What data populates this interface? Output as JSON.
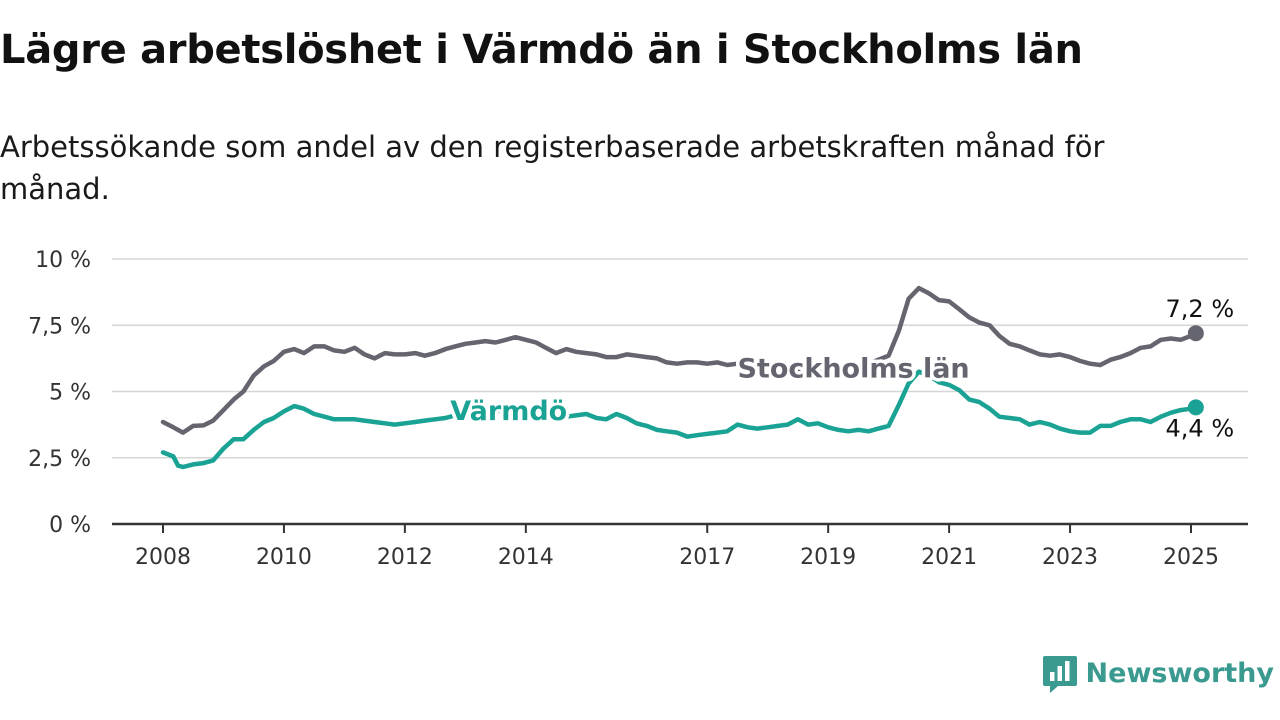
{
  "title": "Lägre arbetslöshet i Värmdö än i Stockholms län",
  "subtitle": "Arbetssökande som andel av den registerbaserade arbetskraften månad för månad.",
  "brand": {
    "name": "Newsworthy",
    "logo_icon": "bar-chart-speech-bubble-icon",
    "color": "#3a9a8f"
  },
  "chart_data": {
    "type": "line",
    "x_unit": "year",
    "xlim": [
      2008,
      2025
    ],
    "ylim": [
      0,
      10
    ],
    "y_ticks": [
      0,
      2.5,
      5,
      7.5,
      10
    ],
    "y_tick_labels": [
      "0 %",
      "2,5 %",
      "5 %",
      "7,5 %",
      "10 %"
    ],
    "x_ticks": [
      2008,
      2010,
      2012,
      2014,
      2017,
      2019,
      2021,
      2023,
      2025
    ],
    "x_tick_labels": [
      "2008",
      "2010",
      "2012",
      "2014",
      "2017",
      "2019",
      "2021",
      "2023",
      "2025"
    ],
    "grid": "horizontal",
    "series": [
      {
        "name": "Stockholms län",
        "color": "#656570",
        "end_label": "7,2 %",
        "points": [
          [
            2008.0,
            3.85
          ],
          [
            2008.17,
            3.65
          ],
          [
            2008.33,
            3.45
          ],
          [
            2008.5,
            3.7
          ],
          [
            2008.67,
            3.72
          ],
          [
            2008.83,
            3.9
          ],
          [
            2009.0,
            4.3
          ],
          [
            2009.17,
            4.7
          ],
          [
            2009.33,
            5.0
          ],
          [
            2009.5,
            5.6
          ],
          [
            2009.67,
            5.95
          ],
          [
            2009.83,
            6.15
          ],
          [
            2010.0,
            6.5
          ],
          [
            2010.17,
            6.6
          ],
          [
            2010.33,
            6.45
          ],
          [
            2010.5,
            6.7
          ],
          [
            2010.67,
            6.7
          ],
          [
            2010.83,
            6.55
          ],
          [
            2011.0,
            6.5
          ],
          [
            2011.17,
            6.65
          ],
          [
            2011.33,
            6.4
          ],
          [
            2011.5,
            6.25
          ],
          [
            2011.67,
            6.45
          ],
          [
            2011.83,
            6.4
          ],
          [
            2012.0,
            6.4
          ],
          [
            2012.17,
            6.45
          ],
          [
            2012.33,
            6.35
          ],
          [
            2012.5,
            6.45
          ],
          [
            2012.67,
            6.6
          ],
          [
            2012.83,
            6.7
          ],
          [
            2013.0,
            6.8
          ],
          [
            2013.17,
            6.85
          ],
          [
            2013.33,
            6.9
          ],
          [
            2013.5,
            6.85
          ],
          [
            2013.67,
            6.95
          ],
          [
            2013.83,
            7.05
          ],
          [
            2014.0,
            6.95
          ],
          [
            2014.17,
            6.85
          ],
          [
            2014.33,
            6.65
          ],
          [
            2014.5,
            6.45
          ],
          [
            2014.67,
            6.6
          ],
          [
            2014.83,
            6.5
          ],
          [
            2015.0,
            6.45
          ],
          [
            2015.17,
            6.4
          ],
          [
            2015.33,
            6.3
          ],
          [
            2015.5,
            6.3
          ],
          [
            2015.67,
            6.4
          ],
          [
            2015.83,
            6.35
          ],
          [
            2016.0,
            6.3
          ],
          [
            2016.17,
            6.25
          ],
          [
            2016.33,
            6.1
          ],
          [
            2016.5,
            6.05
          ],
          [
            2016.67,
            6.1
          ],
          [
            2016.83,
            6.1
          ],
          [
            2017.0,
            6.05
          ],
          [
            2017.17,
            6.1
          ],
          [
            2017.33,
            6.0
          ],
          [
            2017.5,
            6.05
          ],
          [
            2017.67,
            5.95
          ],
          [
            2017.83,
            5.85
          ],
          [
            2018.0,
            5.8
          ],
          [
            2018.17,
            5.85
          ],
          [
            2018.33,
            5.75
          ],
          [
            2018.5,
            5.75
          ],
          [
            2018.67,
            5.8
          ],
          [
            2018.83,
            5.75
          ],
          [
            2019.0,
            5.7
          ],
          [
            2019.17,
            5.75
          ],
          [
            2019.33,
            5.8
          ],
          [
            2019.5,
            5.95
          ],
          [
            2019.67,
            6.05
          ],
          [
            2019.83,
            6.2
          ],
          [
            2020.0,
            6.35
          ],
          [
            2020.17,
            7.3
          ],
          [
            2020.33,
            8.5
          ],
          [
            2020.5,
            8.9
          ],
          [
            2020.67,
            8.7
          ],
          [
            2020.83,
            8.45
          ],
          [
            2021.0,
            8.4
          ],
          [
            2021.17,
            8.1
          ],
          [
            2021.33,
            7.8
          ],
          [
            2021.5,
            7.6
          ],
          [
            2021.67,
            7.5
          ],
          [
            2021.83,
            7.1
          ],
          [
            2022.0,
            6.8
          ],
          [
            2022.17,
            6.7
          ],
          [
            2022.33,
            6.55
          ],
          [
            2022.5,
            6.4
          ],
          [
            2022.67,
            6.35
          ],
          [
            2022.83,
            6.4
          ],
          [
            2023.0,
            6.3
          ],
          [
            2023.17,
            6.15
          ],
          [
            2023.33,
            6.05
          ],
          [
            2023.5,
            6.0
          ],
          [
            2023.67,
            6.2
          ],
          [
            2023.83,
            6.3
          ],
          [
            2024.0,
            6.45
          ],
          [
            2024.17,
            6.65
          ],
          [
            2024.33,
            6.7
          ],
          [
            2024.5,
            6.95
          ],
          [
            2024.67,
            7.0
          ],
          [
            2024.83,
            6.95
          ],
          [
            2025.0,
            7.1
          ],
          [
            2025.08,
            7.2
          ]
        ]
      },
      {
        "name": "Värmdö",
        "color": "#1aa394",
        "end_label": "4,4 %",
        "points": [
          [
            2008.0,
            2.7
          ],
          [
            2008.17,
            2.55
          ],
          [
            2008.25,
            2.2
          ],
          [
            2008.33,
            2.15
          ],
          [
            2008.5,
            2.25
          ],
          [
            2008.67,
            2.3
          ],
          [
            2008.83,
            2.4
          ],
          [
            2009.0,
            2.85
          ],
          [
            2009.17,
            3.2
          ],
          [
            2009.33,
            3.2
          ],
          [
            2009.5,
            3.55
          ],
          [
            2009.67,
            3.85
          ],
          [
            2009.83,
            4.0
          ],
          [
            2010.0,
            4.25
          ],
          [
            2010.17,
            4.45
          ],
          [
            2010.33,
            4.35
          ],
          [
            2010.5,
            4.15
          ],
          [
            2010.67,
            4.05
          ],
          [
            2010.83,
            3.95
          ],
          [
            2011.0,
            3.95
          ],
          [
            2011.17,
            3.95
          ],
          [
            2011.33,
            3.9
          ],
          [
            2011.5,
            3.85
          ],
          [
            2011.67,
            3.8
          ],
          [
            2011.83,
            3.75
          ],
          [
            2012.0,
            3.8
          ],
          [
            2012.17,
            3.85
          ],
          [
            2012.33,
            3.9
          ],
          [
            2012.5,
            3.95
          ],
          [
            2012.67,
            4.0
          ],
          [
            2012.83,
            4.1
          ],
          [
            2013.0,
            4.15
          ],
          [
            2013.17,
            4.15
          ],
          [
            2013.33,
            4.2
          ],
          [
            2013.5,
            4.25
          ],
          [
            2013.67,
            4.3
          ],
          [
            2013.83,
            4.35
          ],
          [
            2014.0,
            4.25
          ],
          [
            2014.17,
            4.15
          ],
          [
            2014.33,
            4.05
          ],
          [
            2014.5,
            4.0
          ],
          [
            2014.67,
            4.05
          ],
          [
            2014.83,
            4.1
          ],
          [
            2015.0,
            4.15
          ],
          [
            2015.17,
            4.0
          ],
          [
            2015.33,
            3.95
          ],
          [
            2015.5,
            4.15
          ],
          [
            2015.67,
            4.0
          ],
          [
            2015.83,
            3.8
          ],
          [
            2016.0,
            3.7
          ],
          [
            2016.17,
            3.55
          ],
          [
            2016.33,
            3.5
          ],
          [
            2016.5,
            3.45
          ],
          [
            2016.67,
            3.3
          ],
          [
            2016.83,
            3.35
          ],
          [
            2017.0,
            3.4
          ],
          [
            2017.17,
            3.45
          ],
          [
            2017.33,
            3.5
          ],
          [
            2017.5,
            3.75
          ],
          [
            2017.67,
            3.65
          ],
          [
            2017.83,
            3.6
          ],
          [
            2018.0,
            3.65
          ],
          [
            2018.17,
            3.7
          ],
          [
            2018.33,
            3.75
          ],
          [
            2018.5,
            3.95
          ],
          [
            2018.67,
            3.75
          ],
          [
            2018.83,
            3.8
          ],
          [
            2019.0,
            3.65
          ],
          [
            2019.17,
            3.55
          ],
          [
            2019.33,
            3.5
          ],
          [
            2019.5,
            3.55
          ],
          [
            2019.67,
            3.5
          ],
          [
            2019.83,
            3.6
          ],
          [
            2020.0,
            3.7
          ],
          [
            2020.17,
            4.5
          ],
          [
            2020.33,
            5.3
          ],
          [
            2020.5,
            5.75
          ],
          [
            2020.67,
            5.6
          ],
          [
            2020.83,
            5.35
          ],
          [
            2021.0,
            5.25
          ],
          [
            2021.17,
            5.05
          ],
          [
            2021.33,
            4.7
          ],
          [
            2021.5,
            4.6
          ],
          [
            2021.67,
            4.35
          ],
          [
            2021.83,
            4.05
          ],
          [
            2022.0,
            4.0
          ],
          [
            2022.17,
            3.95
          ],
          [
            2022.33,
            3.75
          ],
          [
            2022.5,
            3.85
          ],
          [
            2022.67,
            3.75
          ],
          [
            2022.83,
            3.6
          ],
          [
            2023.0,
            3.5
          ],
          [
            2023.17,
            3.45
          ],
          [
            2023.33,
            3.45
          ],
          [
            2023.5,
            3.7
          ],
          [
            2023.67,
            3.7
          ],
          [
            2023.83,
            3.85
          ],
          [
            2024.0,
            3.95
          ],
          [
            2024.17,
            3.95
          ],
          [
            2024.33,
            3.85
          ],
          [
            2024.5,
            4.05
          ],
          [
            2024.67,
            4.2
          ],
          [
            2024.83,
            4.3
          ],
          [
            2025.0,
            4.35
          ],
          [
            2025.08,
            4.4
          ]
        ]
      }
    ]
  }
}
